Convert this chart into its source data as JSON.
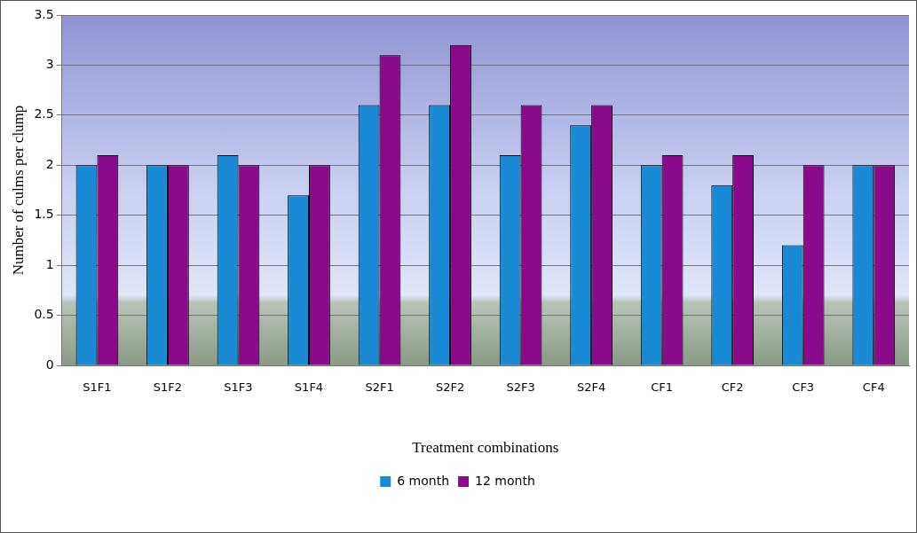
{
  "chart_data": {
    "type": "bar",
    "xlabel": "Treatment combinations",
    "ylabel": "Number of culms per clump",
    "categories": [
      "S1F1",
      "S1F2",
      "S1F3",
      "S1F4",
      "S2F1",
      "S2F2",
      "S2F3",
      "S2F4",
      "CF1",
      "CF2",
      "CF3",
      "CF4"
    ],
    "series": [
      {
        "name": "6 month",
        "color": "#1a8ad4",
        "values": [
          2.0,
          2.0,
          2.1,
          1.7,
          2.6,
          2.6,
          2.1,
          2.4,
          2.0,
          1.8,
          1.2,
          2.0
        ]
      },
      {
        "name": "12 month",
        "color": "#8b0a8c",
        "values": [
          2.1,
          2.0,
          2.0,
          2.0,
          3.1,
          3.2,
          2.6,
          2.6,
          2.1,
          2.1,
          2.0,
          2.0
        ]
      }
    ],
    "ylim": [
      0,
      3.5
    ],
    "yticks": [
      0,
      0.5,
      1,
      1.5,
      2,
      2.5,
      3,
      3.5
    ],
    "grid": "y",
    "legend": "bottom"
  }
}
